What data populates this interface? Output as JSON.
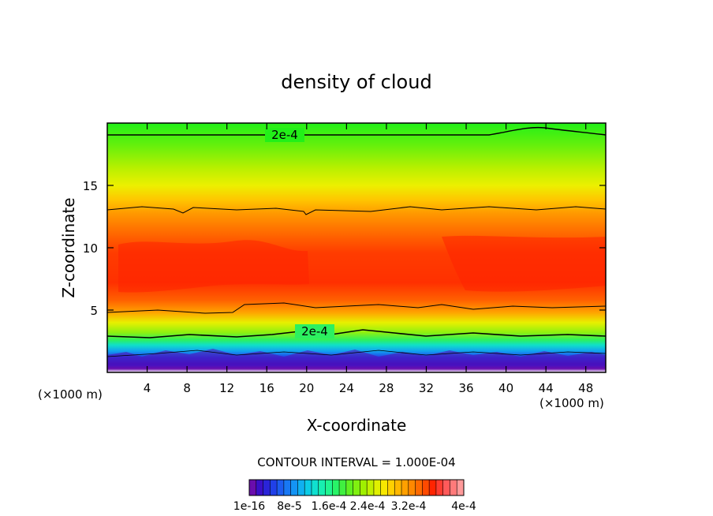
{
  "chart_data": {
    "type": "heatmap",
    "title": "density of cloud",
    "xlabel": "X-coordinate",
    "ylabel": "Z-coordinate",
    "x_unit": "(×1000 m)",
    "y_unit": "(×1000 m)",
    "xlim": [
      0,
      50
    ],
    "ylim": [
      0,
      20
    ],
    "x_ticks": [
      4,
      8,
      12,
      16,
      20,
      24,
      28,
      32,
      36,
      40,
      44,
      48
    ],
    "y_ticks": [
      5,
      10,
      15
    ],
    "contour_labels": [
      {
        "text": "2e-4",
        "x": 18,
        "z": 19
      },
      {
        "text": "2e-4",
        "x": 21,
        "z": 3.3
      }
    ],
    "contour_interval_text": "CONTOUR INTERVAL = 1.000E-04",
    "colorbar": {
      "labels": [
        "1e-16",
        "8e-5",
        "1.6e-4",
        "2.4e-4",
        "3.2e-4",
        "4e-4"
      ],
      "colors": [
        "#6a0dad",
        "#3a0fc8",
        "#2a24d8",
        "#2040e8",
        "#1c5cf0",
        "#1878f4",
        "#1494f4",
        "#10b0f0",
        "#0ccce6",
        "#10e0d0",
        "#18eeb0",
        "#20f490",
        "#28f468",
        "#40f040",
        "#60f020",
        "#80f010",
        "#a0f000",
        "#c0f000",
        "#e0f000",
        "#f8e800",
        "#ffd000",
        "#ffb800",
        "#ffa000",
        "#ff8800",
        "#ff6a00",
        "#ff4a00",
        "#ff2400",
        "#ff3c30",
        "#ff5a5a",
        "#ff7a7a",
        "#ff9a9a"
      ]
    }
  }
}
